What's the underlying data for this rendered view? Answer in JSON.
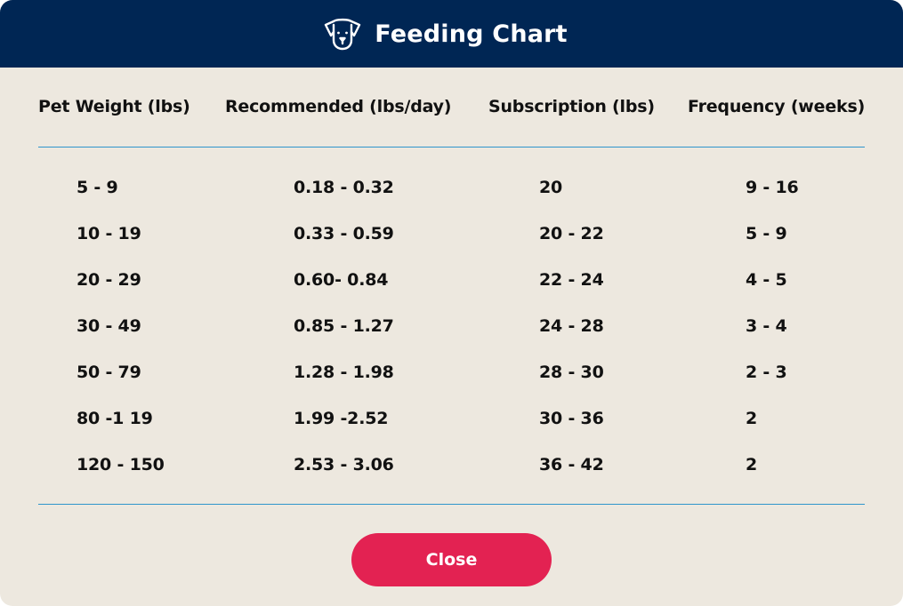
{
  "header": {
    "title": "Feeding Chart",
    "icon": "dog-face-icon",
    "background": "#002654"
  },
  "table": {
    "columns": [
      "Pet Weight (lbs)",
      "Recommended (lbs/day)",
      "Subscription (lbs)",
      "Frequency (weeks)"
    ],
    "rows": [
      [
        "5 - 9",
        "0.18 - 0.32",
        "20",
        "9 - 16"
      ],
      [
        "10 - 19",
        "0.33 - 0.59",
        "20 - 22",
        "5 - 9"
      ],
      [
        "20 - 29",
        "0.60- 0.84",
        "22 - 24",
        "4 - 5"
      ],
      [
        "30 - 49",
        "0.85 - 1.27",
        "24 - 28",
        "3 - 4"
      ],
      [
        "50 - 79",
        "1.28 - 1.98",
        "28 - 30",
        "2 - 3"
      ],
      [
        "80 -1 19",
        "1.99 -2.52",
        "30 - 36",
        "2"
      ],
      [
        "120 - 150",
        "2.53 - 3.06",
        "36 - 42",
        "2"
      ]
    ]
  },
  "footer": {
    "close_label": "Close",
    "close_color": "#e32252"
  },
  "colors": {
    "panel_background": "#ede8df",
    "rule": "#2f95cc"
  }
}
